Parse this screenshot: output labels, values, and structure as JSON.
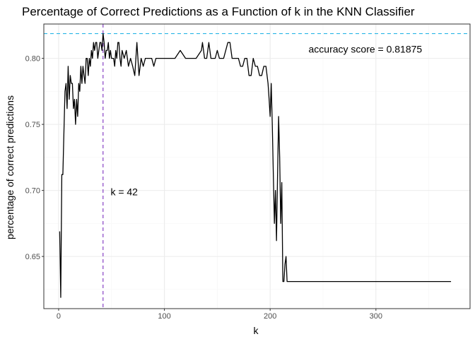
{
  "chart_data": {
    "type": "line",
    "title": "Percentage of Correct Predictions as a Function of k in the KNN Classifier",
    "xlabel": "k",
    "ylabel": "percentage of correct predictions",
    "xlim": [
      -14,
      389
    ],
    "ylim": [
      0.6105,
      0.826
    ],
    "x_ticks": [
      0,
      100,
      200,
      300
    ],
    "x_tick_labels": [
      "0",
      "100",
      "200",
      "300"
    ],
    "y_ticks": [
      0.65,
      0.7,
      0.75,
      0.8
    ],
    "y_tick_labels": [
      "0.65",
      "0.70",
      "0.75",
      "0.80"
    ],
    "grid": true,
    "colors": {
      "line": "#000000",
      "hline": "#29b6e6",
      "vline": "#7b2fbe",
      "grid_major": "#ebebeb",
      "grid_minor": "#f5f5f5",
      "panel_border": "#333333"
    },
    "reference_lines": {
      "hline": {
        "y": 0.81875,
        "style": "dashed"
      },
      "vline": {
        "x": 42,
        "style": "dashed"
      }
    },
    "annotations": [
      {
        "text": "accuracy score = 0.81875",
        "x": 290,
        "y": 0.807
      },
      {
        "text": "k = 42",
        "x": 62,
        "y": 0.699
      }
    ],
    "series": [
      {
        "x": [
          1,
          2,
          3,
          4,
          5,
          6,
          7,
          8,
          9,
          10,
          11,
          12,
          13,
          14,
          15,
          16,
          17,
          18,
          19,
          20,
          21,
          22,
          23,
          24,
          25,
          26,
          27,
          28,
          29,
          30,
          31,
          32,
          33,
          34,
          35,
          36,
          37,
          38,
          39,
          40,
          41,
          42,
          43,
          44,
          45,
          46,
          47,
          48,
          49,
          50,
          51,
          52,
          53,
          54,
          55,
          56,
          57,
          58,
          59,
          60,
          62,
          64,
          66,
          68,
          70,
          72,
          74,
          76,
          78,
          80,
          82,
          84,
          86,
          88,
          90,
          92,
          94,
          96,
          98,
          100,
          105,
          110,
          115,
          120,
          125,
          130,
          135,
          136,
          138,
          140,
          142,
          144,
          146,
          148,
          150,
          152,
          154,
          156,
          158,
          160,
          162,
          164,
          166,
          168,
          170,
          172,
          174,
          176,
          178,
          180,
          182,
          184,
          186,
          188,
          190,
          192,
          194,
          196,
          198,
          199,
          200,
          201,
          202,
          203,
          204,
          205,
          206,
          207,
          208,
          209,
          210,
          211,
          212,
          213,
          214,
          215,
          216,
          217,
          220,
          230,
          250,
          270,
          300,
          330,
          360,
          371
        ],
        "y": [
          0.669,
          0.619,
          0.712,
          0.712,
          0.744,
          0.775,
          0.781,
          0.762,
          0.794,
          0.769,
          0.787,
          0.781,
          0.781,
          0.762,
          0.769,
          0.75,
          0.769,
          0.756,
          0.781,
          0.775,
          0.794,
          0.781,
          0.794,
          0.787,
          0.781,
          0.8,
          0.8,
          0.787,
          0.8,
          0.794,
          0.806,
          0.8,
          0.812,
          0.806,
          0.812,
          0.812,
          0.8,
          0.806,
          0.812,
          0.812,
          0.806,
          0.81875,
          0.812,
          0.8,
          0.806,
          0.806,
          0.812,
          0.8,
          0.806,
          0.8,
          0.8,
          0.8,
          0.794,
          0.806,
          0.8,
          0.812,
          0.812,
          0.8,
          0.794,
          0.806,
          0.8,
          0.806,
          0.794,
          0.8,
          0.794,
          0.787,
          0.812,
          0.787,
          0.8,
          0.794,
          0.8,
          0.8,
          0.8,
          0.8,
          0.794,
          0.8,
          0.8,
          0.8,
          0.8,
          0.8,
          0.8,
          0.8,
          0.806,
          0.8,
          0.8,
          0.8,
          0.806,
          0.812,
          0.8,
          0.8,
          0.812,
          0.8,
          0.8,
          0.8,
          0.806,
          0.8,
          0.8,
          0.8,
          0.806,
          0.812,
          0.812,
          0.8,
          0.8,
          0.8,
          0.8,
          0.794,
          0.794,
          0.8,
          0.8,
          0.787,
          0.787,
          0.8,
          0.794,
          0.794,
          0.787,
          0.787,
          0.794,
          0.794,
          0.781,
          0.769,
          0.756,
          0.781,
          0.75,
          0.712,
          0.675,
          0.7,
          0.662,
          0.712,
          0.756,
          0.725,
          0.675,
          0.706,
          0.631,
          0.631,
          0.644,
          0.65,
          0.631,
          0.631,
          0.631,
          0.631,
          0.631,
          0.631,
          0.631,
          0.631,
          0.631,
          0.631
        ]
      }
    ]
  }
}
